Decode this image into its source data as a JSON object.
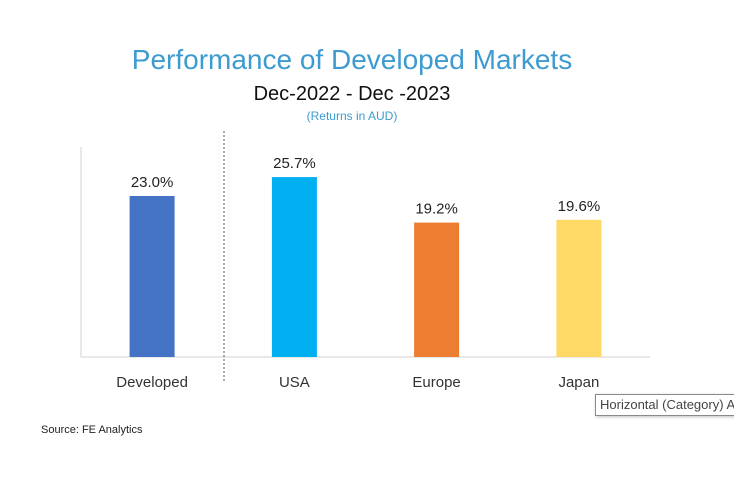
{
  "chart_data": {
    "type": "bar",
    "title": "Performance of Developed Markets",
    "subtitle": "Dec-2022 - Dec -2023",
    "note": "(Returns in AUD)",
    "categories": [
      "Developed",
      "USA",
      "Europe",
      "Japan"
    ],
    "values": [
      23.0,
      25.7,
      19.2,
      19.6
    ],
    "data_labels": [
      "23.0%",
      "25.7%",
      "19.2%",
      "19.6%"
    ],
    "colors": [
      "#4472c4",
      "#00b0f0",
      "#ed7d31",
      "#ffd966"
    ],
    "ylim": [
      0,
      30
    ],
    "xlabel": "",
    "ylabel": "",
    "grid": false,
    "legend": "none"
  },
  "source": "Source: FE Analytics",
  "tooltip": "Horizontal (Category) Axis"
}
